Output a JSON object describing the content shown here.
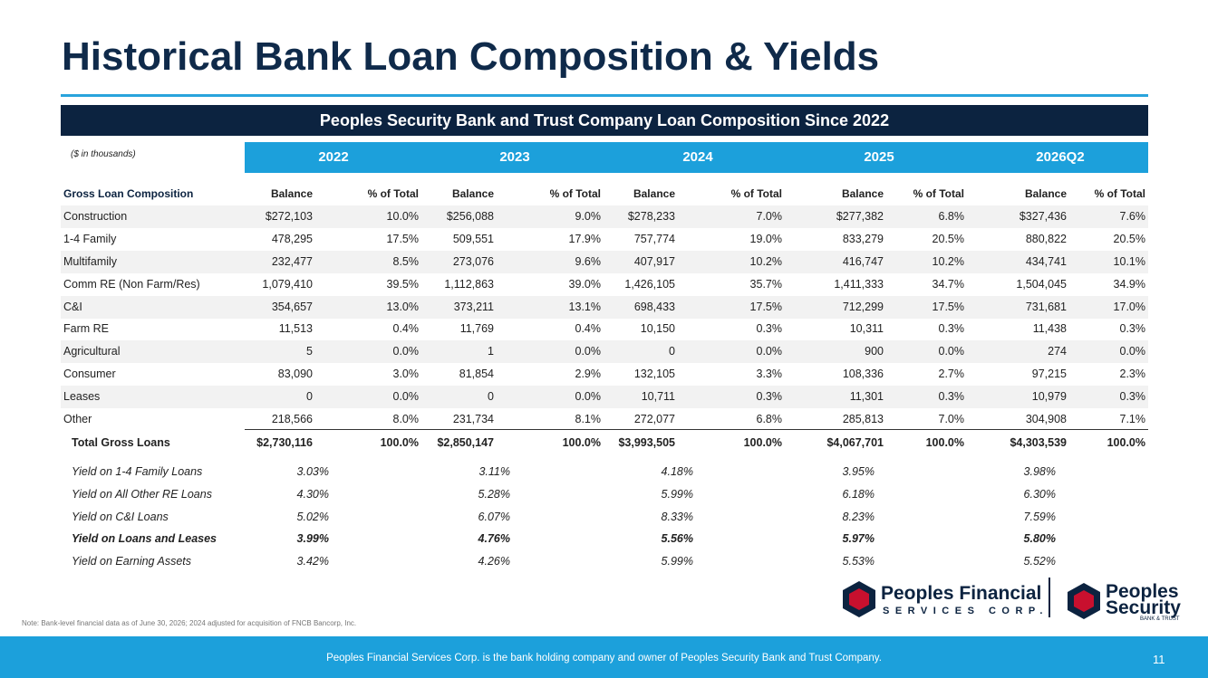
{
  "title": "Historical Bank Loan Composition & Yields",
  "table": {
    "caption": "Peoples Security Bank and Trust Company Loan Composition Since 2022",
    "units": "($ in thousands)",
    "years": [
      "2022",
      "2023",
      "2024",
      "2025",
      "2026Q2"
    ],
    "header": [
      "Gross Loan Composition",
      "Balance",
      "% of Total",
      "Balance",
      "% of Total",
      "Balance",
      "% of Total",
      "Balance",
      "% of Total",
      "Balance",
      "% of Total"
    ],
    "rows": [
      [
        "Construction",
        "$272,103",
        "10.0%",
        "$256,088",
        "9.0%",
        "$278,233",
        "7.0%",
        "$277,382",
        "6.8%",
        "$327,436",
        "7.6%"
      ],
      [
        "1-4 Family",
        "478,295",
        "17.5%",
        "509,551",
        "17.9%",
        "757,774",
        "19.0%",
        "833,279",
        "20.5%",
        "880,822",
        "20.5%"
      ],
      [
        "Multifamily",
        "232,477",
        "8.5%",
        "273,076",
        "9.6%",
        "407,917",
        "10.2%",
        "416,747",
        "10.2%",
        "434,741",
        "10.1%"
      ],
      [
        "Comm RE (Non Farm/Res)",
        "1,079,410",
        "39.5%",
        "1,112,863",
        "39.0%",
        "1,426,105",
        "35.7%",
        "1,411,333",
        "34.7%",
        "1,504,045",
        "34.9%"
      ],
      [
        "C&I",
        "354,657",
        "13.0%",
        "373,211",
        "13.1%",
        "698,433",
        "17.5%",
        "712,299",
        "17.5%",
        "731,681",
        "17.0%"
      ],
      [
        "Farm RE",
        "11,513",
        "0.4%",
        "11,769",
        "0.4%",
        "10,150",
        "0.3%",
        "10,311",
        "0.3%",
        "11,438",
        "0.3%"
      ],
      [
        "Agricultural",
        "5",
        "0.0%",
        "1",
        "0.0%",
        "0",
        "0.0%",
        "900",
        "0.0%",
        "274",
        "0.0%"
      ],
      [
        "Consumer",
        "83,090",
        "3.0%",
        "81,854",
        "2.9%",
        "132,105",
        "3.3%",
        "108,336",
        "2.7%",
        "97,215",
        "2.3%"
      ],
      [
        "Leases",
        "0",
        "0.0%",
        "0",
        "0.0%",
        "10,711",
        "0.3%",
        "11,301",
        "0.3%",
        "10,979",
        "0.3%"
      ],
      [
        "Other",
        "218,566",
        "8.0%",
        "231,734",
        "8.1%",
        "272,077",
        "6.8%",
        "285,813",
        "7.0%",
        "304,908",
        "7.1%"
      ]
    ],
    "total": [
      "Total Gross Loans",
      "$2,730,116",
      "100.0%",
      "$2,850,147",
      "100.0%",
      "$3,993,505",
      "100.0%",
      "$4,067,701",
      "100.0%",
      "$4,303,539",
      "100.0%"
    ]
  },
  "yields": [
    [
      "Yield on 1-4 Family Loans",
      "3.03%",
      "3.11%",
      "4.18%",
      "3.95%",
      "3.98%"
    ],
    [
      "Yield on All Other RE Loans",
      "4.30%",
      "5.28%",
      "5.99%",
      "6.18%",
      "6.30%"
    ],
    [
      "Yield on C&I Loans",
      "5.02%",
      "6.07%",
      "8.33%",
      "8.23%",
      "7.59%"
    ],
    [
      "Yield on Loans and Leases",
      "3.99%",
      "4.76%",
      "5.56%",
      "5.97%",
      "5.80%"
    ],
    [
      "Yield on Earning Assets",
      "3.42%",
      "4.26%",
      "5.99%",
      "5.53%",
      "5.52%"
    ]
  ],
  "logos": {
    "left_name": "Peoples Financial",
    "left_sub": "SERVICES CORP.",
    "right_name_1": "Peoples",
    "right_name_2": "Security",
    "right_sub": "BANK & TRUST"
  },
  "note": "Note: Bank-level financial data as of June 30, 2026; 2024 adjusted for acquisition of FNCB Bancorp, Inc.",
  "footer": {
    "text": "Peoples Financial Services Corp. is the bank holding company and owner of Peoples Security Bank and Trust Company.",
    "page": "11"
  }
}
